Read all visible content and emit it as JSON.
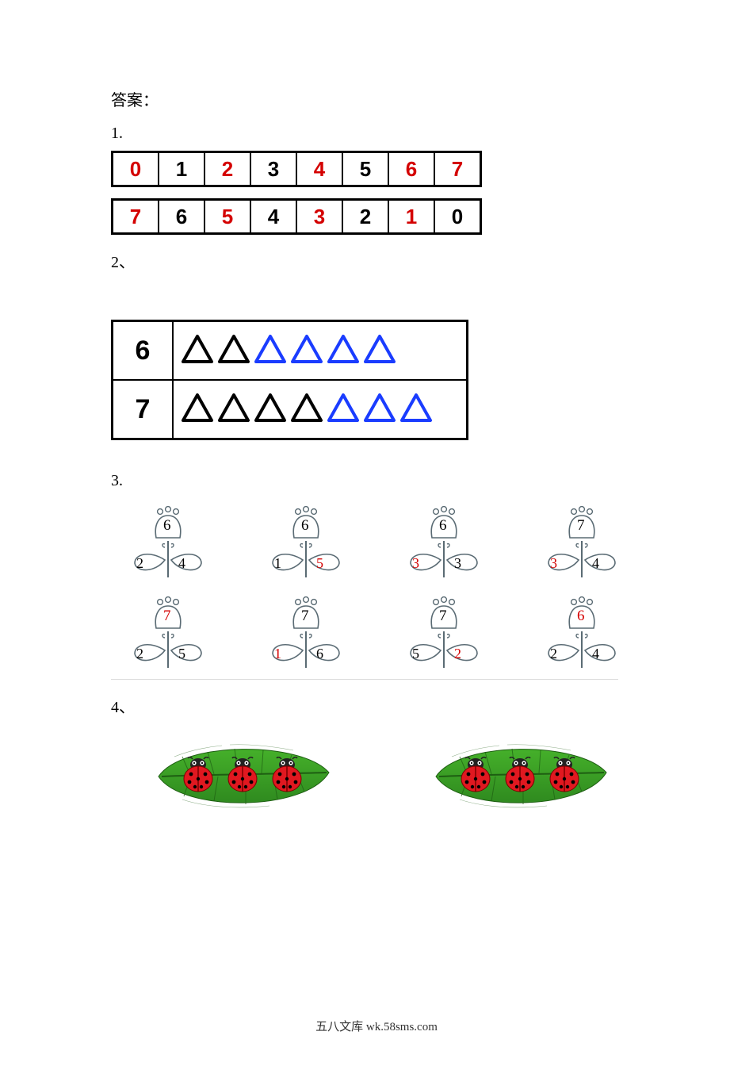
{
  "colors": {
    "red": "#d40000",
    "black": "#000000",
    "blue": "#1a3cff",
    "stroke": "#5a6b74",
    "leaf1": "#2f8a1f",
    "leaf2": "#45b02a",
    "leaf_dark": "#1e5e12",
    "bug_red": "#e01820",
    "bug_head": "#222222"
  },
  "heading": "答案：",
  "q1": {
    "num": "1.",
    "row1": [
      {
        "v": "0",
        "c": "red"
      },
      {
        "v": "1",
        "c": "black"
      },
      {
        "v": "2",
        "c": "red"
      },
      {
        "v": "3",
        "c": "black"
      },
      {
        "v": "4",
        "c": "red"
      },
      {
        "v": "5",
        "c": "black"
      },
      {
        "v": "6",
        "c": "red"
      },
      {
        "v": "7",
        "c": "red"
      }
    ],
    "row2": [
      {
        "v": "7",
        "c": "red"
      },
      {
        "v": "6",
        "c": "black"
      },
      {
        "v": "5",
        "c": "red"
      },
      {
        "v": "4",
        "c": "black"
      },
      {
        "v": "3",
        "c": "red"
      },
      {
        "v": "2",
        "c": "black"
      },
      {
        "v": "1",
        "c": "red"
      },
      {
        "v": "0",
        "c": "black"
      }
    ]
  },
  "q2": {
    "num": "2、",
    "rows": [
      {
        "n": "6",
        "tris": [
          {
            "c": "black"
          },
          {
            "c": "black"
          },
          {
            "c": "blue"
          },
          {
            "c": "blue"
          },
          {
            "c": "blue"
          },
          {
            "c": "blue"
          }
        ]
      },
      {
        "n": "7",
        "tris": [
          {
            "c": "black"
          },
          {
            "c": "black"
          },
          {
            "c": "black"
          },
          {
            "c": "black"
          },
          {
            "c": "blue"
          },
          {
            "c": "blue"
          },
          {
            "c": "blue"
          }
        ]
      }
    ]
  },
  "q3": {
    "num": "3.",
    "rows": [
      [
        {
          "top": {
            "v": "6",
            "c": "black"
          },
          "l": {
            "v": "2",
            "c": "black"
          },
          "r": {
            "v": "4",
            "c": "black"
          }
        },
        {
          "top": {
            "v": "6",
            "c": "black"
          },
          "l": {
            "v": "1",
            "c": "black"
          },
          "r": {
            "v": "5",
            "c": "red"
          }
        },
        {
          "top": {
            "v": "6",
            "c": "black"
          },
          "l": {
            "v": "3",
            "c": "red"
          },
          "r": {
            "v": "3",
            "c": "black"
          }
        },
        {
          "top": {
            "v": "7",
            "c": "black"
          },
          "l": {
            "v": "3",
            "c": "red"
          },
          "r": {
            "v": "4",
            "c": "black"
          }
        }
      ],
      [
        {
          "top": {
            "v": "7",
            "c": "red"
          },
          "l": {
            "v": "2",
            "c": "black"
          },
          "r": {
            "v": "5",
            "c": "black"
          }
        },
        {
          "top": {
            "v": "7",
            "c": "black"
          },
          "l": {
            "v": "1",
            "c": "red"
          },
          "r": {
            "v": "6",
            "c": "black"
          }
        },
        {
          "top": {
            "v": "7",
            "c": "black"
          },
          "l": {
            "v": "5",
            "c": "black"
          },
          "r": {
            "v": "2",
            "c": "red"
          }
        },
        {
          "top": {
            "v": "6",
            "c": "red"
          },
          "l": {
            "v": "2",
            "c": "black"
          },
          "r": {
            "v": "4",
            "c": "black"
          }
        }
      ]
    ]
  },
  "q4": {
    "num": "4、",
    "leaves": [
      {
        "bugs": 3
      },
      {
        "bugs": 3
      }
    ]
  },
  "footer": "五八文库 wk.58sms.com"
}
